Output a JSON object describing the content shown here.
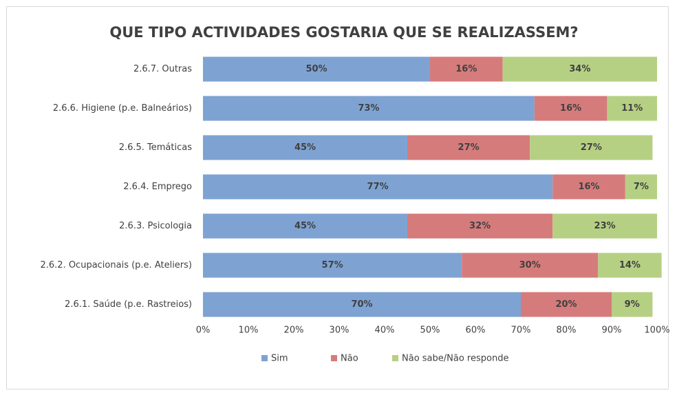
{
  "chart_data": {
    "type": "stacked-barh",
    "title": "QUE TIPO ACTIVIDADES GOSTARIA QUE SE REALIZASSEM?",
    "categories": [
      "2.6.7. Outras",
      "2.6.6. Higiene (p.e. Balneários)",
      "2.6.5. Temáticas",
      "2.6.4. Emprego",
      "2.6.3. Psicologia",
      "2.6.2. Ocupacionais (p.e. Ateliers)",
      "2.6.1. Saúde (p.e. Rastreios)"
    ],
    "series": [
      {
        "name": "Sim",
        "color": "#7ea3d3",
        "values": [
          50,
          73,
          45,
          77,
          45,
          57,
          70
        ],
        "value_labels": [
          "50%",
          "73%",
          "45%",
          "77%",
          "45%",
          "57%",
          "70%"
        ]
      },
      {
        "name": "Não",
        "color": "#d67b7b",
        "values": [
          16,
          16,
          27,
          16,
          32,
          30,
          20
        ],
        "value_labels": [
          "16%",
          "16%",
          "27%",
          "16%",
          "32%",
          "30%",
          "20%"
        ]
      },
      {
        "name": "Não sabe/Não responde",
        "color": "#b6d083",
        "values": [
          34,
          11,
          27,
          7,
          23,
          14,
          9
        ],
        "value_labels": [
          "34%",
          "11%",
          "27%",
          "7%",
          "23%",
          "14%",
          "9%"
        ]
      }
    ],
    "xlim": [
      0,
      100
    ],
    "xticks": [
      {
        "value": 0,
        "label": "0%"
      },
      {
        "value": 10,
        "label": "10%"
      },
      {
        "value": 20,
        "label": "20%"
      },
      {
        "value": 30,
        "label": "30%"
      },
      {
        "value": 40,
        "label": "40%"
      },
      {
        "value": 50,
        "label": "50%"
      },
      {
        "value": 60,
        "label": "60%"
      },
      {
        "value": 70,
        "label": "70%"
      },
      {
        "value": 80,
        "label": "80%"
      },
      {
        "value": 90,
        "label": "90%"
      },
      {
        "value": 100,
        "label": "100%"
      }
    ],
    "legend": "bottom"
  }
}
